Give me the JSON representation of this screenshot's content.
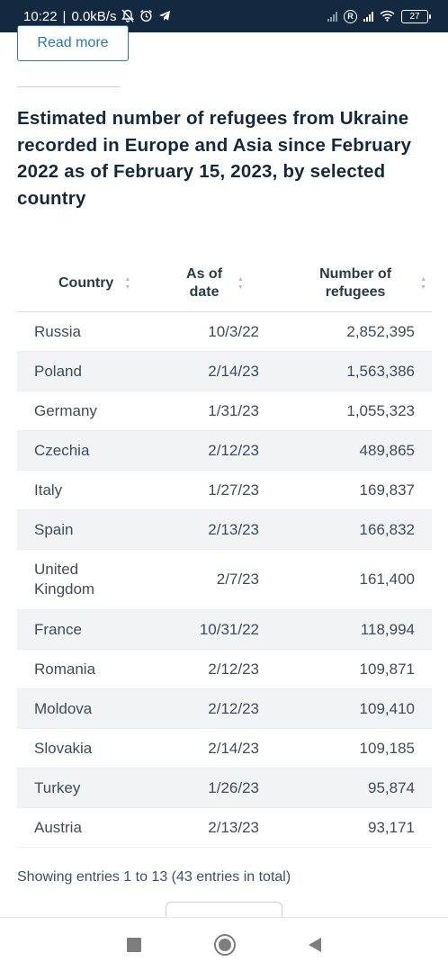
{
  "status_bar": {
    "time": "10:22",
    "speed": "0.0kB/s",
    "battery": "27"
  },
  "read_more_label": "Read more",
  "title": "Estimated number of refugees from Ukraine recorded in Europe and Asia since February 2022 as of February 15, 2023, by selected country",
  "table": {
    "headers": {
      "country": "Country",
      "date": "As of date",
      "number": "Number of refugees"
    },
    "rows": [
      {
        "country": "Russia",
        "date": "10/3/22",
        "number": "2,852,395"
      },
      {
        "country": "Poland",
        "date": "2/14/23",
        "number": "1,563,386"
      },
      {
        "country": "Germany",
        "date": "1/31/23",
        "number": "1,055,323"
      },
      {
        "country": "Czechia",
        "date": "2/12/23",
        "number": "489,865"
      },
      {
        "country": "Italy",
        "date": "1/27/23",
        "number": "169,837"
      },
      {
        "country": "Spain",
        "date": "2/13/23",
        "number": "166,832"
      },
      {
        "country": "United Kingdom",
        "date": "2/7/23",
        "number": "161,400"
      },
      {
        "country": "France",
        "date": "10/31/22",
        "number": "118,994"
      },
      {
        "country": "Romania",
        "date": "2/12/23",
        "number": "109,871"
      },
      {
        "country": "Moldova",
        "date": "2/12/23",
        "number": "109,410"
      },
      {
        "country": "Slovakia",
        "date": "2/14/23",
        "number": "109,185"
      },
      {
        "country": "Turkey",
        "date": "1/26/23",
        "number": "95,874"
      },
      {
        "country": "Austria",
        "date": "2/13/23",
        "number": "93,171"
      }
    ]
  },
  "showing_text": "Showing entries 1 to 13 (43 entries in total)",
  "icons": {
    "mute": "bell-off-icon",
    "alarm": "alarm-icon",
    "telegram": "telegram-icon",
    "signal": "signal-icon",
    "wifi": "wifi-icon"
  }
}
